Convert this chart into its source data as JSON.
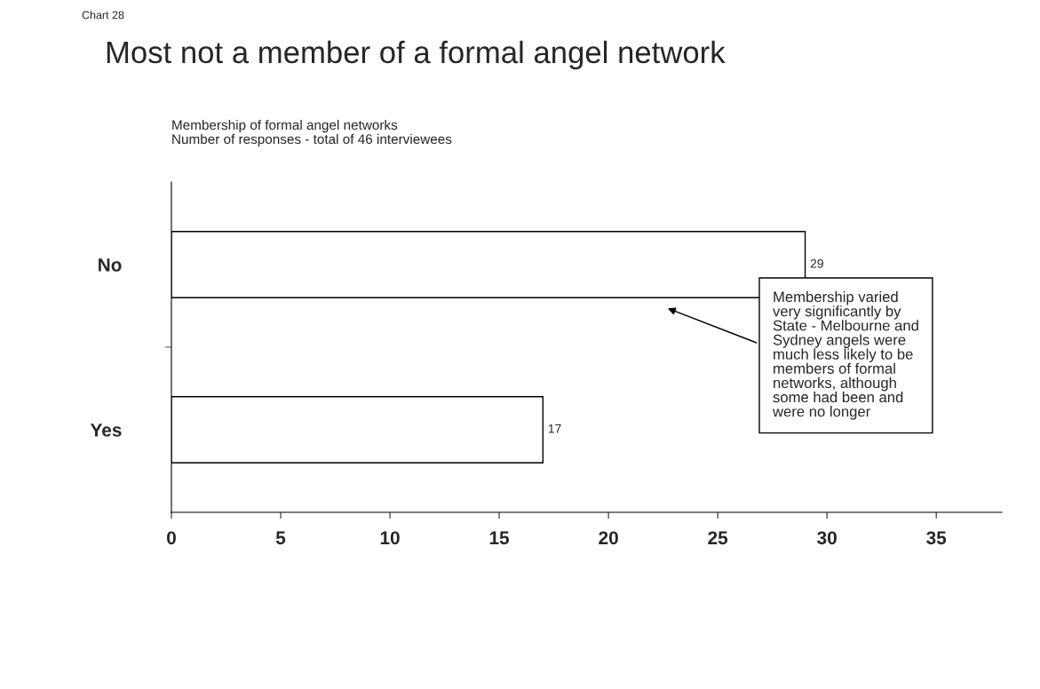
{
  "chart_data": {
    "type": "bar",
    "orientation": "horizontal",
    "title": "Most not a member of a formal angel network",
    "subtitle": "Membership of formal angel networks\nNumber of responses - total of 46 interviewees",
    "categories": [
      "No",
      "Yes"
    ],
    "values": [
      29,
      17
    ],
    "color": "#ffffff",
    "xlim": [
      0,
      38
    ],
    "xticks": [
      0,
      5,
      10,
      15,
      20,
      25,
      30,
      35
    ],
    "data_labels": true,
    "grid": false,
    "legend": false,
    "annotations": [
      "Chart 28",
      "Membership varied\nvery significantly by\nState - Melbourne and\nSydney angels were\nmuch less likely to be\nmembers of formal\nnetworks, although\nsome had been and\nwere no longer"
    ]
  }
}
